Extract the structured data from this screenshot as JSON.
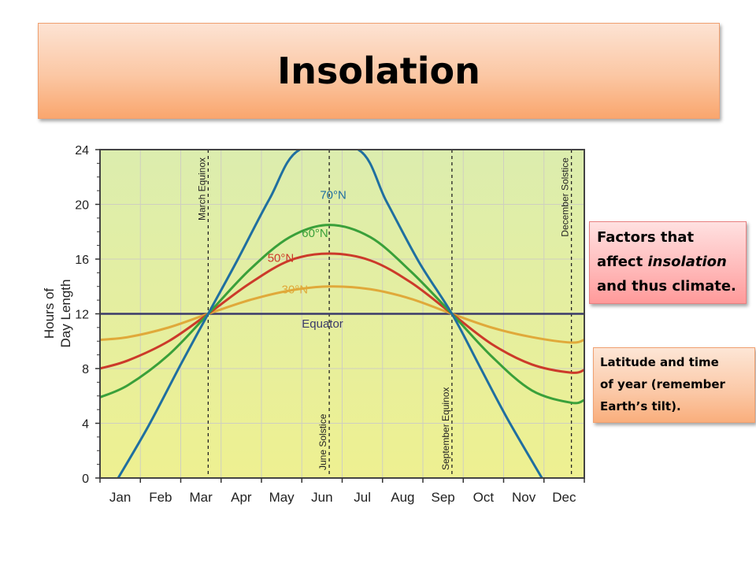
{
  "slide": {
    "title": "Insolation",
    "note1": {
      "line1": "Factors that",
      "line2_pre": "affect ",
      "line2_italic": "insolation",
      "line3": "and thus climate."
    },
    "note2": {
      "line1": "Latitude and time",
      "line2": "of year (remember",
      "line3": "Earth’s tilt)."
    }
  },
  "colors": {
    "equator": "#3a3a6a",
    "30N": "#e0a93a",
    "50N": "#cc3a2a",
    "60N": "#3aa03a",
    "70N": "#1f6fa0",
    "plot_bg_top": "#dcedae",
    "plot_bg_bottom": "#eef091"
  },
  "chart_data": {
    "type": "line",
    "ylabel_line1": "Hours of",
    "ylabel_line2": "Day Length",
    "ylim": [
      0,
      24
    ],
    "yticks": [
      "0",
      "4",
      "8",
      "12",
      "16",
      "20",
      "24"
    ],
    "x_categories": [
      "Jan",
      "Feb",
      "Mar",
      "Apr",
      "May",
      "Jun",
      "Jul",
      "Aug",
      "Sep",
      "Oct",
      "Nov",
      "Dec"
    ],
    "grid": true,
    "markers": [
      {
        "label": "March Equinox",
        "month": 2.68
      },
      {
        "label": "June Solstice",
        "month": 5.68
      },
      {
        "label": "September Equinox",
        "month": 8.72
      },
      {
        "label": "December Solstice",
        "month": 11.68
      }
    ],
    "series": [
      {
        "name": "Equator",
        "color_key": "equator",
        "x": [
          0,
          12
        ],
        "values": [
          12,
          12
        ]
      },
      {
        "name": "30°N",
        "color_key": "30N",
        "x": [
          0,
          0.7,
          1.7,
          2.68,
          3.7,
          4.7,
          5.68,
          6.7,
          7.7,
          8.72,
          9.7,
          10.7,
          11.68,
          12
        ],
        "values": [
          10.1,
          10.3,
          11.0,
          12.0,
          13.0,
          13.7,
          14.0,
          13.8,
          13.1,
          12.0,
          11.0,
          10.3,
          9.9,
          10.1
        ]
      },
      {
        "name": "50°N",
        "color_key": "50N",
        "x": [
          0,
          0.7,
          1.7,
          2.68,
          3.7,
          4.7,
          5.68,
          6.7,
          7.7,
          8.72,
          9.7,
          10.7,
          11.68,
          12
        ],
        "values": [
          8.0,
          8.6,
          10.0,
          12.0,
          14.2,
          15.9,
          16.4,
          15.9,
          14.3,
          12.0,
          9.8,
          8.3,
          7.7,
          7.9
        ]
      },
      {
        "name": "60°N",
        "color_key": "60N",
        "x": [
          0,
          0.7,
          1.7,
          2.68,
          3.7,
          4.7,
          5.68,
          6.7,
          7.7,
          8.72,
          9.7,
          10.7,
          11.68,
          12
        ],
        "values": [
          5.9,
          6.8,
          9.0,
          12.0,
          15.2,
          17.6,
          18.5,
          17.6,
          15.1,
          12.0,
          8.9,
          6.4,
          5.5,
          5.7
        ]
      },
      {
        "name": "70°N",
        "color_key": "70N",
        "x": [
          0.45,
          1.2,
          2.0,
          2.68,
          3.4,
          4.2,
          4.95,
          6.4,
          7.1,
          7.9,
          8.72,
          9.4,
          10.1,
          10.95
        ],
        "values": [
          0,
          3.8,
          8.3,
          12.0,
          15.9,
          20.4,
          24,
          24,
          20.2,
          15.8,
          12.0,
          8.2,
          4.3,
          0
        ]
      }
    ]
  }
}
